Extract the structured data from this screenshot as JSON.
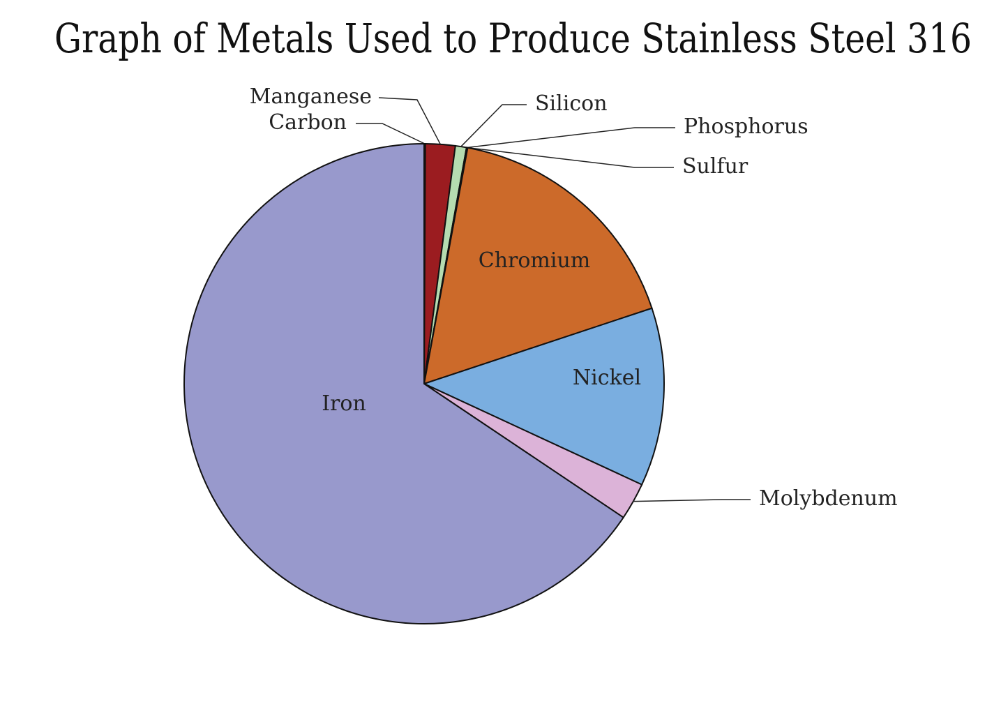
{
  "chart_data": {
    "type": "pie",
    "title": "Graph of Metals Used to Produce Stainless Steel 316",
    "categories": [
      "Carbon",
      "Manganese",
      "Silicon",
      "Phosphorus",
      "Sulfur",
      "Chromium",
      "Nickel",
      "Molybdenum",
      "Iron"
    ],
    "values": [
      0.08,
      2,
      0.75,
      0.045,
      0.03,
      17,
      12,
      2.5,
      65.595
    ],
    "colors": [
      "#5a1a1a",
      "#9b1c20",
      "#b5dcb0",
      "#e8e8a0",
      "#f0d070",
      "#cc6a2a",
      "#7aaee0",
      "#dcb3d8",
      "#9899cc"
    ]
  }
}
